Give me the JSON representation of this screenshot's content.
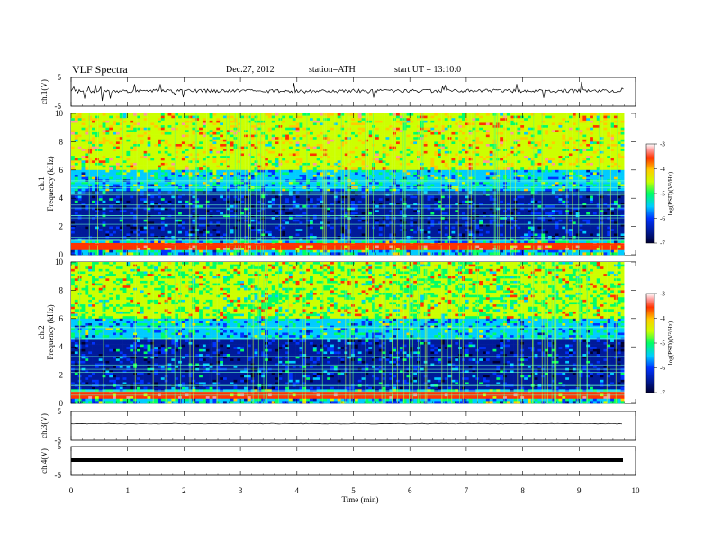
{
  "header": {
    "title": "VLF Spectra",
    "date": "Dec.27, 2012",
    "station": "station=ATH",
    "start": "start  UT  =   13:10:0"
  },
  "colors": {
    "spectrogram_scale": [
      "#000033",
      "#001a99",
      "#0033ff",
      "#00ccff",
      "#00ff66",
      "#ccff00",
      "#ffcc00",
      "#ff3300",
      "#ff9999",
      "#ffffff"
    ],
    "trace": "#000000"
  },
  "chart_data": [
    {
      "type": "line",
      "title": "",
      "ylabel": "ch.1(V)",
      "ylim": [
        -5,
        5
      ],
      "yticks": [
        "5",
        "-5"
      ],
      "series": [
        {
          "values_description_free": true,
          "baseline": 0.0
        }
      ]
    },
    {
      "type": "heatmap",
      "ylabel_channel": "ch.1",
      "ylabel": "Frequency  (kHz)",
      "ylim": [
        0,
        10
      ],
      "yticks": [
        "0",
        "2",
        "4",
        "6",
        "8",
        "10"
      ],
      "colorbar": {
        "label": "log(PSD)(V²/Hz)",
        "range": [
          -7,
          -3
        ],
        "ticks": [
          "-3",
          "-4",
          "-5",
          "-6",
          "-7"
        ]
      }
    },
    {
      "type": "heatmap",
      "ylabel_channel": "ch.2",
      "ylabel": "Frequency  (kHz)",
      "ylim": [
        0,
        10
      ],
      "yticks": [
        "0",
        "2",
        "4",
        "6",
        "8",
        "10"
      ],
      "colorbar": {
        "label": "log(PSD)(V²/Hz)",
        "range": [
          -7,
          -3
        ],
        "ticks": [
          "-3",
          "-4",
          "-5",
          "-6",
          "-7"
        ]
      }
    },
    {
      "type": "line",
      "ylabel": "ch.3(V)",
      "ylim": [
        -5,
        5
      ],
      "yticks": [
        "5",
        "-5"
      ]
    },
    {
      "type": "line",
      "ylabel": "ch.4(V)",
      "ylim": [
        -5,
        5
      ],
      "yticks": [
        "5",
        "-5"
      ]
    }
  ],
  "xaxis": {
    "label": "Time  (min)",
    "range": [
      0,
      10
    ],
    "ticks": [
      "0",
      "1",
      "2",
      "3",
      "4",
      "5",
      "6",
      "7",
      "8",
      "9",
      "10"
    ],
    "data_end": 9.8
  }
}
